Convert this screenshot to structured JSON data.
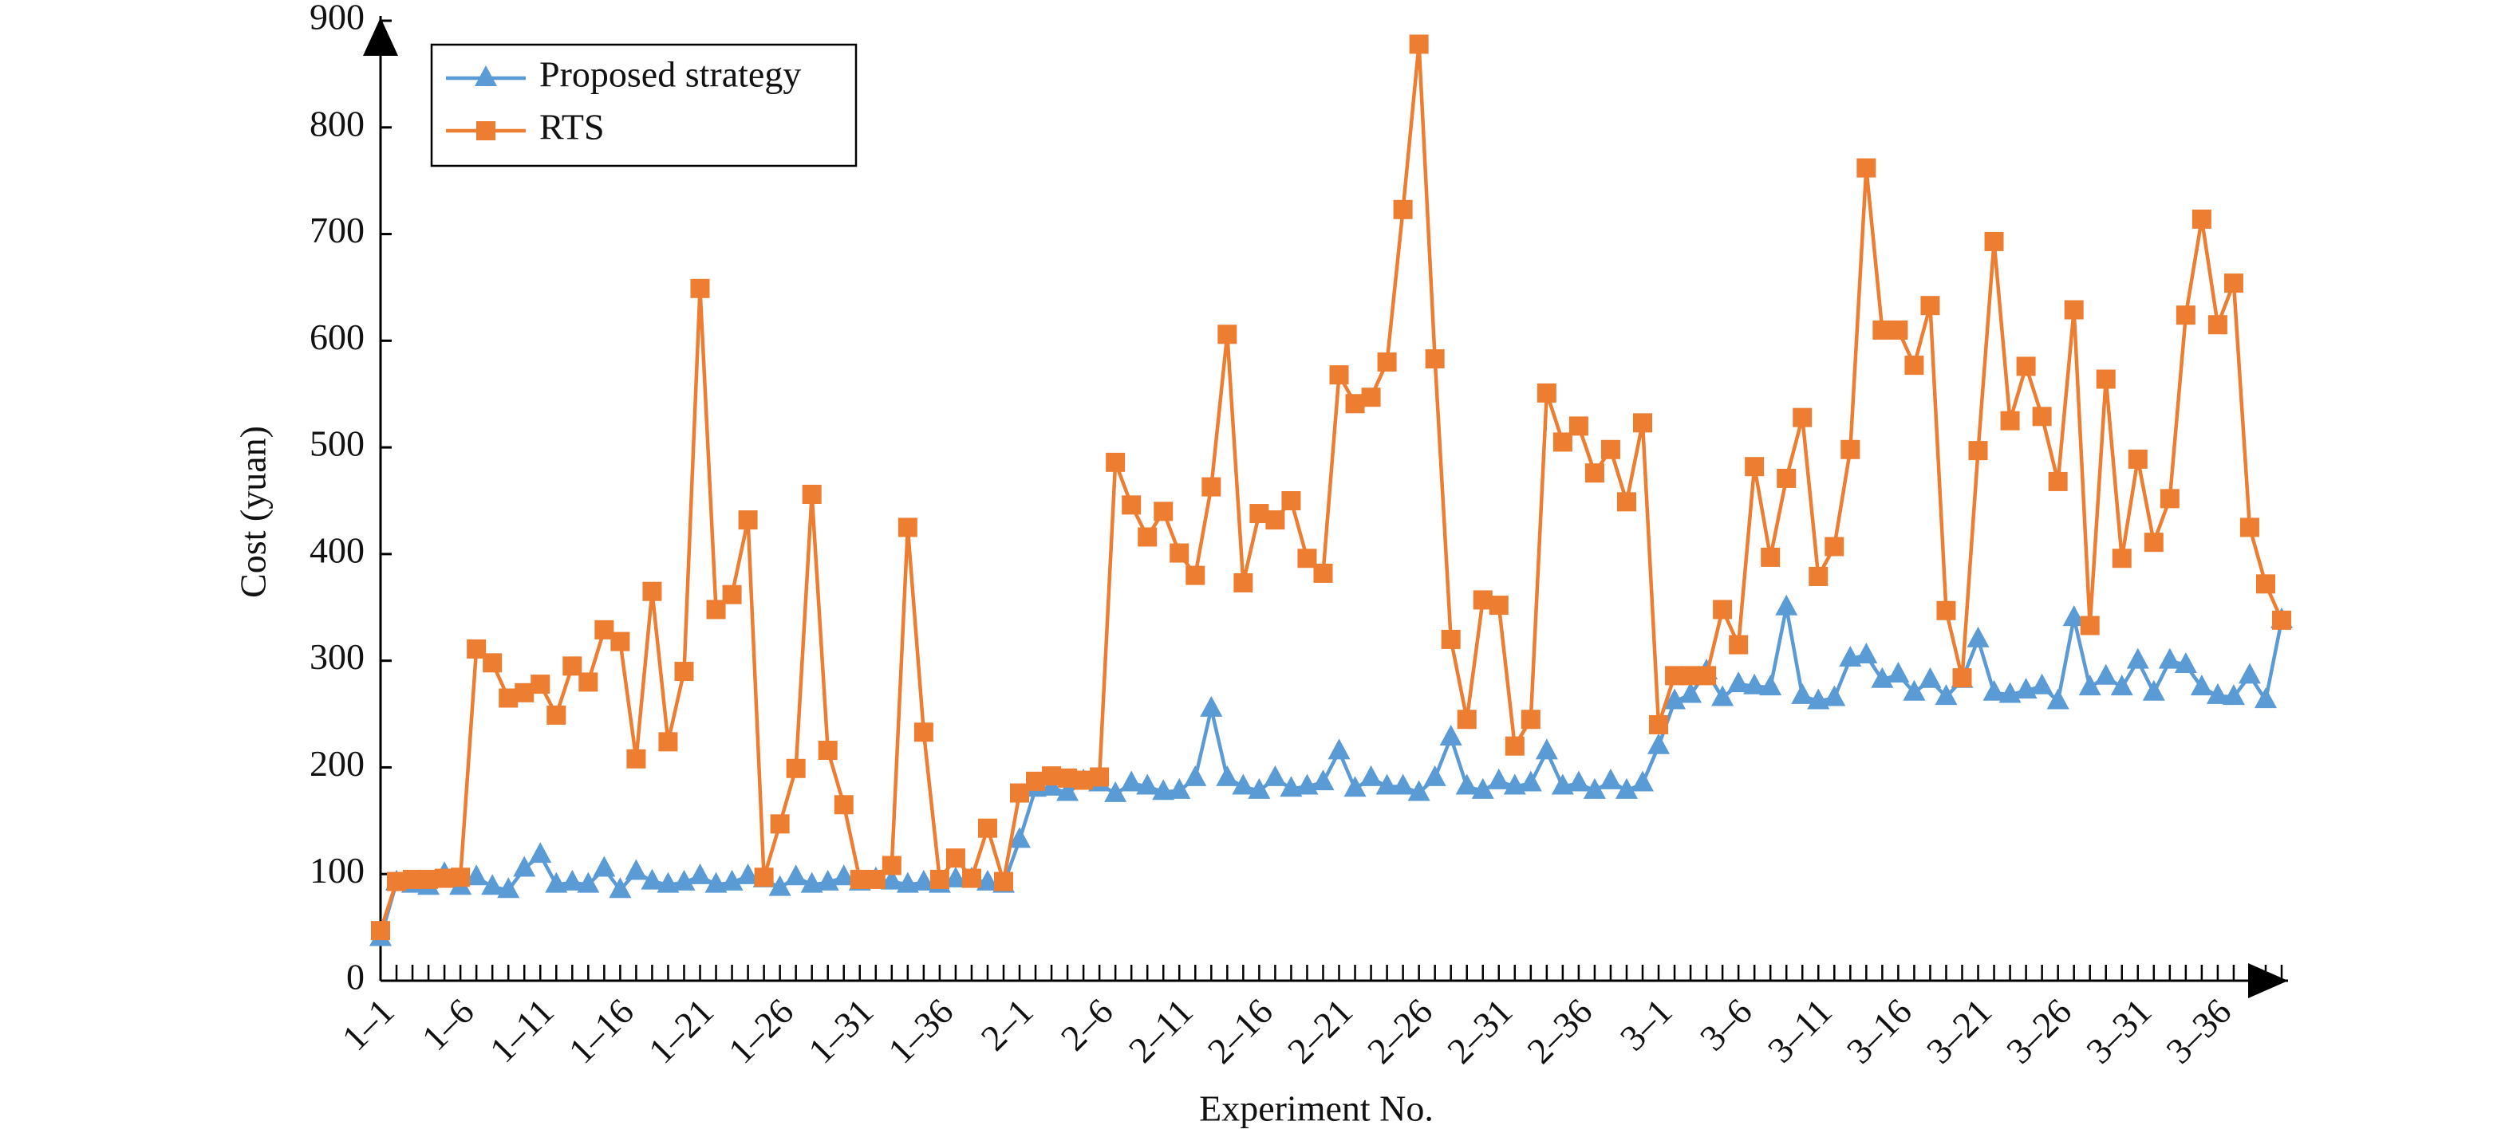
{
  "chart_data": {
    "type": "line",
    "x_label": "Experiment No.",
    "y_label": "Cost (yuan)",
    "categories": [
      "1–1",
      null,
      null,
      null,
      null,
      "1–6",
      null,
      null,
      null,
      null,
      "1–11",
      null,
      null,
      null,
      null,
      "1–16",
      null,
      null,
      null,
      null,
      "1–21",
      null,
      null,
      null,
      null,
      "1–26",
      null,
      null,
      null,
      null,
      "1–31",
      null,
      null,
      null,
      null,
      "1–36",
      null,
      null,
      null,
      null,
      "2–1",
      null,
      null,
      null,
      null,
      "2–6",
      null,
      null,
      null,
      null,
      "2–11",
      null,
      null,
      null,
      null,
      "2–16",
      null,
      null,
      null,
      null,
      "2–21",
      null,
      null,
      null,
      null,
      "2–26",
      null,
      null,
      null,
      null,
      "2–31",
      null,
      null,
      null,
      null,
      "2–36",
      null,
      null,
      null,
      null,
      "3–1",
      null,
      null,
      null,
      null,
      "3–6",
      null,
      null,
      null,
      null,
      "3–11",
      null,
      null,
      null,
      null,
      "3–16",
      null,
      null,
      null,
      null,
      "3–21",
      null,
      null,
      null,
      null,
      "3–26",
      null,
      null,
      null,
      null,
      "3–31",
      null,
      null,
      null,
      null,
      "3–36",
      null,
      null,
      null,
      null
    ],
    "series": [
      {
        "name": "Proposed strategy",
        "color": "#5b9bd5",
        "marker": "triangle",
        "values": [
          40,
          92,
          90,
          88,
          100,
          88,
          97,
          88,
          85,
          105,
          118,
          90,
          92,
          90,
          105,
          85,
          102,
          93,
          90,
          92,
          98,
          90,
          92,
          98,
          95,
          87,
          97,
          90,
          92,
          97,
          92,
          95,
          93,
          90,
          92,
          90,
          95,
          95,
          92,
          90,
          132,
          180,
          181,
          176,
          187,
          185,
          175,
          185,
          182,
          177,
          178,
          190,
          255,
          190,
          182,
          178,
          190,
          180,
          182,
          186,
          215,
          180,
          190,
          182,
          182,
          176,
          190,
          228,
          182,
          178,
          187,
          182,
          185,
          215,
          182,
          185,
          178,
          187,
          178,
          185,
          220,
          262,
          268,
          290,
          265,
          278,
          276,
          275,
          350,
          267,
          262,
          265,
          302,
          305,
          282,
          287,
          270,
          282,
          266,
          282,
          320,
          270,
          268,
          272,
          276,
          262,
          340,
          275,
          285,
          275,
          300,
          270,
          300,
          296,
          275,
          267,
          266,
          286,
          263,
          338
        ]
      },
      {
        "name": "RTS",
        "color": "#ed7d31",
        "marker": "square",
        "values": [
          47,
          93,
          95,
          95,
          96,
          97,
          311,
          298,
          265,
          270,
          278,
          249,
          295,
          280,
          329,
          318,
          208,
          365,
          224,
          290,
          649,
          348,
          362,
          432,
          97,
          147,
          199,
          456,
          216,
          165,
          95,
          95,
          108,
          425,
          233,
          95,
          115,
          96,
          143,
          93,
          176,
          187,
          192,
          190,
          188,
          191,
          486,
          446,
          416,
          440,
          401,
          380,
          463,
          606,
          373,
          438,
          432,
          450,
          396,
          382,
          568,
          541,
          547,
          580,
          723,
          878,
          583,
          320,
          245,
          357,
          352,
          220,
          245,
          551,
          505,
          520,
          476,
          498,
          449,
          523,
          240,
          286,
          286,
          286,
          348,
          315,
          482,
          397,
          471,
          528,
          379,
          407,
          498,
          762,
          610,
          610,
          577,
          633,
          347,
          284,
          497,
          693,
          525,
          576,
          529,
          468,
          629,
          333,
          564,
          396,
          489,
          411,
          452,
          624,
          714,
          615,
          654,
          425,
          372,
          338
        ]
      }
    ],
    "ylim": [
      0,
      900
    ],
    "yticks": [
      0,
      100,
      200,
      300,
      400,
      500,
      600,
      700,
      800,
      900
    ],
    "legend": "upper left"
  }
}
